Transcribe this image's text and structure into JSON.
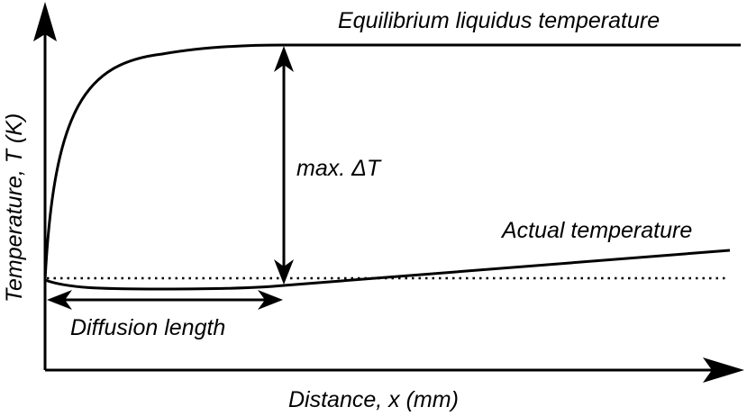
{
  "diagram": {
    "labels": {
      "y_axis": "Temperature, T (K)",
      "x_axis": "Distance, x (mm)",
      "liquidus": "Equilibrium liquidus temperature",
      "actual": "Actual temperature",
      "max_dt": "max. ΔT",
      "diffusion": "Diffusion length"
    },
    "colors": {
      "stroke": "#000000",
      "background": "#ffffff"
    },
    "line_styles": {
      "liquidus_curve": "solid",
      "actual_curve": "solid",
      "reference_line": "dotted"
    },
    "arrows": {
      "axes": "filled-arrowhead",
      "max_dt_indicator": "double-headed",
      "diffusion_indicator": "double-headed"
    }
  }
}
